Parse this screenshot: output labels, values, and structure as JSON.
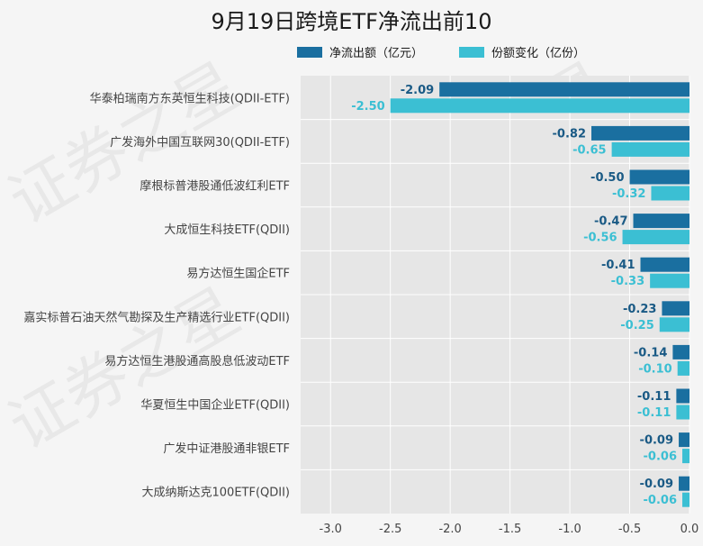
{
  "chart_data": {
    "type": "bar",
    "orientation": "horizontal",
    "title": "9月19日跨境ETF净流出前10",
    "categories": [
      "华泰柏瑞南方东英恒生科技(QDII-ETF)",
      "广发海外中国互联网30(QDII-ETF)",
      "摩根标普港股通低波红利ETF",
      "大成恒生科技ETF(QDII)",
      "易方达恒生国企ETF",
      "嘉实标普石油天然气勘探及生产精选行业ETF(QDII)",
      "易方达恒生港股通高股息低波动ETF",
      "华夏恒生中国企业ETF(QDII)",
      "广发中证港股通非银ETF",
      "大成纳斯达克100ETF(QDII)"
    ],
    "series": [
      {
        "name": "净流出额（亿元）",
        "color": "#1a6fa0",
        "label_color": "#1a5a85",
        "values": [
          -2.09,
          -0.82,
          -0.5,
          -0.47,
          -0.41,
          -0.23,
          -0.14,
          -0.11,
          -0.09,
          -0.09
        ],
        "labels": [
          "-2.09",
          "-0.82",
          "-0.50",
          "-0.47",
          "-0.41",
          "-0.23",
          "-0.14",
          "-0.11",
          "-0.09",
          "-0.09"
        ]
      },
      {
        "name": "份额变化（亿份）",
        "color": "#3bbfd3",
        "label_color": "#3bbfd3",
        "values": [
          -2.5,
          -0.65,
          -0.32,
          -0.56,
          -0.33,
          -0.25,
          -0.1,
          -0.11,
          -0.06,
          -0.06
        ],
        "labels": [
          "-2.50",
          "-0.65",
          "-0.32",
          "-0.56",
          "-0.33",
          "-0.25",
          "-0.10",
          "-0.11",
          "-0.06",
          "-0.06"
        ]
      }
    ],
    "xlim": [
      -3.25,
      0.0
    ],
    "xticks": [
      -3.0,
      -2.5,
      -2.0,
      -1.5,
      -1.0,
      -0.5,
      0.0
    ],
    "xtick_labels": [
      "-3.0",
      "-2.5",
      "-2.0",
      "-1.5",
      "-1.0",
      "-0.5",
      "0.0"
    ],
    "xlabel": "",
    "ylabel": "",
    "grid": true,
    "legend_position": "top-center"
  },
  "watermark": "证券之星",
  "colors": {
    "background": "#f5f5f5",
    "plot_background": "#e6e6e6",
    "grid": "#ffffff"
  }
}
